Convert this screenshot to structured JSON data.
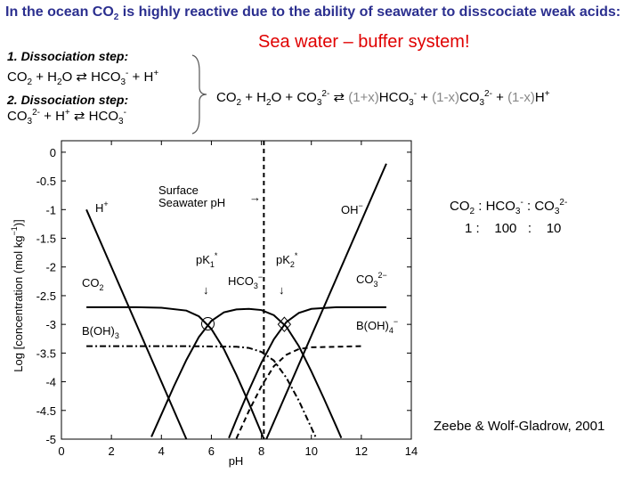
{
  "slide": {
    "header": [
      {
        "t": "In the ocean CO"
      },
      {
        "sub": "2"
      },
      {
        "t": " is highly reactive due to the ability of seawater to disscociate weak acids:"
      }
    ],
    "highlight": "Sea water – buffer system!",
    "step1_title": "1. Dissociation step:",
    "step1_eq": [
      {
        "t": "CO"
      },
      {
        "sub": "2"
      },
      {
        "t": " + H"
      },
      {
        "sub": "2"
      },
      {
        "t": "O "
      },
      {
        "t": "⇄"
      },
      {
        "t": " HCO"
      },
      {
        "sub": "3"
      },
      {
        "sup": "-"
      },
      {
        "t": " + H"
      },
      {
        "sup": "+"
      }
    ],
    "step2_title": "2. Dissociation step:",
    "step2_eq": [
      {
        "t": "CO"
      },
      {
        "sub": "3"
      },
      {
        "sup": "2-"
      },
      {
        "t": " + H"
      },
      {
        "sup": "+"
      },
      {
        "t": " "
      },
      {
        "t": "⇄"
      },
      {
        "t": " HCO"
      },
      {
        "sub": "3"
      },
      {
        "sup": "-"
      }
    ],
    "combined_eq": [
      {
        "t": "CO"
      },
      {
        "sub": "2"
      },
      {
        "t": " + H"
      },
      {
        "sub": "2"
      },
      {
        "t": "O + CO"
      },
      {
        "sub": "3"
      },
      {
        "sup": "2-"
      },
      {
        "t": " ⇄ "
      },
      {
        "t": "(1+x)",
        "gray": true
      },
      {
        "t": "HCO"
      },
      {
        "sub": "3"
      },
      {
        "sup": "-"
      },
      {
        "t": " + "
      },
      {
        "t": "(1-x)",
        "gray": true
      },
      {
        "t": "CO"
      },
      {
        "sub": "3"
      },
      {
        "sup": "2-"
      },
      {
        "t": " + "
      },
      {
        "t": "(1-x)",
        "gray": true
      },
      {
        "t": "H"
      },
      {
        "sup": "+"
      }
    ],
    "ratio_species": [
      {
        "t": "CO"
      },
      {
        "sub": "2"
      },
      {
        "t": " :  HCO"
      },
      {
        "sub": "3"
      },
      {
        "sup": "-"
      },
      {
        "t": "  :  CO"
      },
      {
        "sub": "3"
      },
      {
        "sup": "2-"
      }
    ],
    "ratio_values": "1 :    100   :    10",
    "credit": "Zeebe & Wolf-Gladrow, 2001"
  },
  "chart_data": {
    "type": "line",
    "xlabel": "pH",
    "ylabel": [
      {
        "t": "Log [concentration (mol kg"
      },
      {
        "sup": "−1"
      },
      {
        "t": ")]"
      }
    ],
    "xlim": [
      0,
      14
    ],
    "xticks": [
      0,
      2,
      4,
      6,
      8,
      10,
      12,
      14
    ],
    "ylim": [
      -5,
      0.2
    ],
    "yticks": [
      0,
      -0.5,
      -1,
      -1.5,
      -2,
      -2.5,
      -3,
      -3.5,
      -4,
      -4.5,
      -5
    ],
    "surface_ph": 8.1,
    "series": [
      {
        "color": "#000000",
        "dash": "solid",
        "x": [
          1,
          5
        ],
        "values": [
          -1,
          -5
        ]
      },
      {
        "color": "#000000",
        "dash": "solid",
        "x": [
          8.2,
          13
        ],
        "values": [
          -5,
          -0.2
        ]
      },
      {
        "color": "#000000",
        "dash": "solid",
        "x": [
          1,
          2,
          3,
          4,
          5,
          5.5,
          6,
          6.5,
          7,
          7.5,
          8,
          8.1
        ],
        "values": [
          -2.7,
          -2.7,
          -2.7,
          -2.71,
          -2.76,
          -2.86,
          -3.08,
          -3.43,
          -3.88,
          -4.37,
          -4.89,
          -5.0
        ]
      },
      {
        "color": "#000000",
        "dash": "solid",
        "x": [
          3.6,
          4,
          4.5,
          5,
          5.5,
          6,
          6.5,
          7,
          7.5,
          8,
          8.5,
          9,
          9.5,
          10,
          10.5,
          11,
          11.2
        ],
        "values": [
          -4.96,
          -4.57,
          -4.08,
          -3.62,
          -3.22,
          -2.94,
          -2.79,
          -2.74,
          -2.73,
          -2.75,
          -2.84,
          -3.04,
          -3.38,
          -3.82,
          -4.29,
          -4.78,
          -4.98
        ]
      },
      {
        "color": "#000000",
        "dash": "solid",
        "x": [
          6.7,
          7,
          7.5,
          8,
          8.5,
          9,
          9.5,
          10,
          11,
          12,
          13
        ],
        "values": [
          -4.98,
          -4.66,
          -4.15,
          -3.67,
          -3.26,
          -2.96,
          -2.8,
          -2.73,
          -2.7,
          -2.7,
          -2.7
        ]
      },
      {
        "color": "#000000",
        "dash": "dashdot",
        "x": [
          1,
          3,
          5,
          7,
          7.5,
          8,
          8.5,
          9,
          9.5,
          10,
          10.2
        ],
        "values": [
          -3.38,
          -3.38,
          -3.38,
          -3.39,
          -3.41,
          -3.48,
          -3.63,
          -3.93,
          -4.33,
          -4.8,
          -4.99
        ]
      },
      {
        "color": "#000000",
        "dash": "dashed",
        "x": [
          7,
          7.5,
          8,
          8.5,
          9,
          9.5,
          10,
          11,
          12
        ],
        "values": [
          -4.99,
          -4.51,
          -4.08,
          -3.73,
          -3.53,
          -3.43,
          -3.4,
          -3.39,
          -3.38
        ]
      }
    ],
    "markers": [
      {
        "shape": "circle",
        "x": 5.86,
        "y": -2.99
      },
      {
        "shape": "diamond",
        "x": 8.92,
        "y": -3.0
      }
    ],
    "labels": [
      [
        {
          "t": "H"
        },
        {
          "sup": "+"
        }
      ],
      [
        {
          "t": "OH"
        },
        {
          "sup": "−"
        }
      ],
      [
        {
          "t": "CO"
        },
        {
          "sub": "2"
        }
      ],
      [
        {
          "t": "HCO"
        },
        {
          "sub": "3"
        },
        {
          "sup": "−"
        }
      ],
      [
        {
          "t": "CO"
        },
        {
          "sub": "3"
        },
        {
          "sup": "2−"
        }
      ],
      [
        {
          "t": "B(OH)"
        },
        {
          "sub": "3"
        }
      ],
      [
        {
          "t": "B(OH)"
        },
        {
          "sub": "4"
        },
        {
          "sup": "−"
        }
      ],
      [
        {
          "t": "pK"
        },
        {
          "sub": "1"
        },
        {
          "sup": "*"
        }
      ],
      [
        {
          "t": "pK"
        },
        {
          "sub": "2"
        },
        {
          "sup": "*"
        }
      ],
      [
        {
          "t": "↓"
        }
      ],
      [
        {
          "t": "↓"
        }
      ],
      [
        {
          "t": "Surface"
        }
      ],
      [
        {
          "t": "Seawater pH"
        }
      ],
      [
        {
          "t": "→"
        }
      ]
    ]
  }
}
